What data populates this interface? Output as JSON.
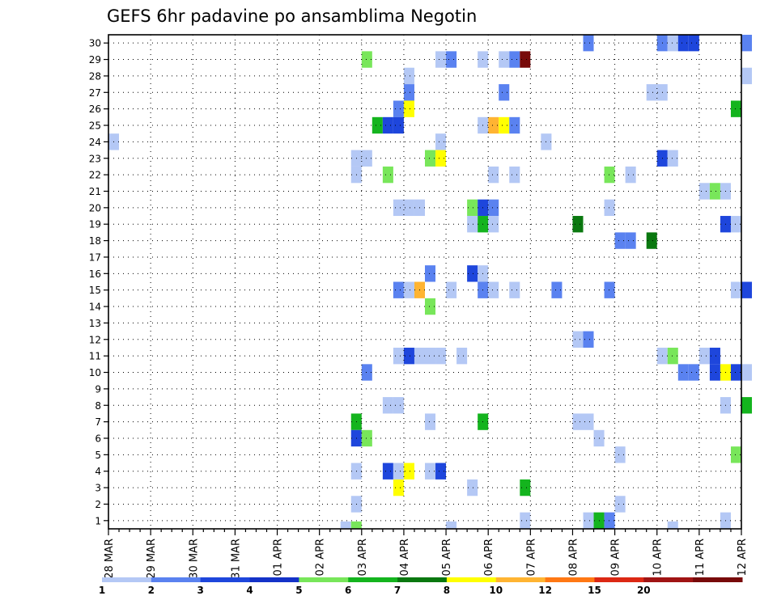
{
  "chart_data": {
    "type": "heatmap",
    "title": "GEFS 6hr padavine po ansamblima Negotin",
    "xlabel": "",
    "ylabel": "",
    "x_tick_labels": [
      "28 MAR",
      "29 MAR",
      "30 MAR",
      "31 MAR",
      "01 APR",
      "02 APR",
      "03 APR",
      "04 APR",
      "05 APR",
      "06 APR",
      "07 APR",
      "08 APR",
      "09 APR",
      "10 APR",
      "11 APR",
      "12 APR"
    ],
    "x_range_steps": [
      0,
      60
    ],
    "y_range": [
      0.5,
      30.5
    ],
    "y_tick_labels": [
      "1",
      "2",
      "3",
      "4",
      "5",
      "6",
      "7",
      "8",
      "9",
      "10",
      "11",
      "12",
      "13",
      "14",
      "15",
      "16",
      "17",
      "18",
      "19",
      "20",
      "21",
      "22",
      "23",
      "24",
      "25",
      "26",
      "27",
      "28",
      "29",
      "30"
    ],
    "time_step": "6hr",
    "grid": "dotted",
    "colorbar": {
      "labels": [
        "1",
        "2",
        "3",
        "4",
        "5",
        "6",
        "7",
        "8",
        "10",
        "12",
        "15",
        "20"
      ],
      "colors": [
        "#b4c8f5",
        "#5a82f0",
        "#1e46dc",
        "#1432c8",
        "#78e65a",
        "#14b41e",
        "#0a780f",
        "#ffff00",
        "#ffb432",
        "#ff7814",
        "#dc2814",
        "#a01414",
        "#780a0a"
      ]
    },
    "cells_note": "each cell: [member, step (6-hour steps from 28 MAR 00Z), color index into colorbar.colors]",
    "cells": [
      [
        30,
        45,
        1
      ],
      [
        30,
        52,
        1
      ],
      [
        30,
        53,
        0
      ],
      [
        30,
        54,
        2
      ],
      [
        30,
        55,
        2
      ],
      [
        30,
        60,
        1
      ],
      [
        29,
        24,
        4
      ],
      [
        29,
        31,
        0
      ],
      [
        29,
        32,
        1
      ],
      [
        29,
        35,
        0
      ],
      [
        29,
        37,
        0
      ],
      [
        29,
        38,
        1
      ],
      [
        29,
        39,
        12
      ],
      [
        28,
        28,
        0
      ],
      [
        28,
        60,
        0
      ],
      [
        27,
        28,
        1
      ],
      [
        27,
        37,
        1
      ],
      [
        27,
        51,
        0
      ],
      [
        27,
        52,
        0
      ],
      [
        26,
        27,
        1
      ],
      [
        26,
        28,
        7
      ],
      [
        26,
        59,
        5
      ],
      [
        25,
        25,
        5
      ],
      [
        25,
        26,
        2
      ],
      [
        25,
        27,
        2
      ],
      [
        25,
        35,
        0
      ],
      [
        25,
        36,
        8
      ],
      [
        25,
        37,
        7
      ],
      [
        25,
        38,
        1
      ],
      [
        24,
        0,
        0
      ],
      [
        24,
        31,
        0
      ],
      [
        24,
        41,
        0
      ],
      [
        23,
        23,
        0
      ],
      [
        23,
        24,
        0
      ],
      [
        23,
        30,
        4
      ],
      [
        23,
        31,
        7
      ],
      [
        23,
        52,
        2
      ],
      [
        23,
        53,
        0
      ],
      [
        22,
        23,
        0
      ],
      [
        22,
        26,
        4
      ],
      [
        22,
        36,
        0
      ],
      [
        22,
        38,
        0
      ],
      [
        22,
        47,
        4
      ],
      [
        22,
        49,
        0
      ],
      [
        21,
        56,
        0
      ],
      [
        21,
        57,
        4
      ],
      [
        21,
        58,
        0
      ],
      [
        20,
        27,
        0
      ],
      [
        20,
        28,
        0
      ],
      [
        20,
        29,
        0
      ],
      [
        20,
        34,
        4
      ],
      [
        20,
        35,
        2
      ],
      [
        20,
        36,
        1
      ],
      [
        20,
        47,
        0
      ],
      [
        19,
        34,
        0
      ],
      [
        19,
        35,
        5
      ],
      [
        19,
        36,
        0
      ],
      [
        19,
        44,
        6
      ],
      [
        19,
        58,
        2
      ],
      [
        19,
        59,
        0
      ],
      [
        18,
        48,
        1
      ],
      [
        18,
        49,
        1
      ],
      [
        18,
        51,
        6
      ],
      [
        16,
        30,
        1
      ],
      [
        16,
        34,
        2
      ],
      [
        16,
        35,
        0
      ],
      [
        15,
        27,
        1
      ],
      [
        15,
        28,
        0
      ],
      [
        15,
        29,
        8
      ],
      [
        15,
        32,
        0
      ],
      [
        15,
        35,
        1
      ],
      [
        15,
        36,
        0
      ],
      [
        15,
        38,
        0
      ],
      [
        15,
        42,
        1
      ],
      [
        15,
        47,
        1
      ],
      [
        15,
        59,
        0
      ],
      [
        15,
        60,
        2
      ],
      [
        14,
        30,
        4
      ],
      [
        12,
        44,
        0
      ],
      [
        12,
        45,
        1
      ],
      [
        11,
        27,
        0
      ],
      [
        11,
        28,
        2
      ],
      [
        11,
        29,
        0
      ],
      [
        11,
        30,
        0
      ],
      [
        11,
        31,
        0
      ],
      [
        11,
        33,
        0
      ],
      [
        11,
        52,
        0
      ],
      [
        11,
        53,
        4
      ],
      [
        11,
        56,
        0
      ],
      [
        11,
        57,
        2
      ],
      [
        10,
        24,
        1
      ],
      [
        10,
        54,
        1
      ],
      [
        10,
        55,
        1
      ],
      [
        10,
        57,
        2
      ],
      [
        10,
        58,
        7
      ],
      [
        10,
        59,
        2
      ],
      [
        10,
        60,
        0
      ],
      [
        8,
        26,
        0
      ],
      [
        8,
        27,
        0
      ],
      [
        8,
        58,
        0
      ],
      [
        8,
        60,
        5
      ],
      [
        7,
        23,
        5
      ],
      [
        7,
        30,
        0
      ],
      [
        7,
        35,
        5
      ],
      [
        7,
        44,
        0
      ],
      [
        7,
        45,
        0
      ],
      [
        6,
        23,
        2
      ],
      [
        6,
        24,
        4
      ],
      [
        6,
        46,
        0
      ],
      [
        5,
        48,
        0
      ],
      [
        5,
        59,
        4
      ],
      [
        4,
        23,
        0
      ],
      [
        4,
        26,
        2
      ],
      [
        4,
        27,
        0
      ],
      [
        4,
        28,
        7
      ],
      [
        4,
        30,
        0
      ],
      [
        4,
        31,
        2
      ],
      [
        3,
        27,
        7
      ],
      [
        3,
        34,
        0
      ],
      [
        3,
        39,
        5
      ],
      [
        2,
        23,
        0
      ],
      [
        2,
        48,
        0
      ],
      [
        1,
        39,
        0
      ],
      [
        1,
        45,
        0
      ],
      [
        1,
        46,
        5
      ],
      [
        1,
        47,
        1
      ],
      [
        1,
        58,
        0
      ],
      [
        0.5,
        22,
        0
      ],
      [
        0.5,
        23,
        4
      ],
      [
        0.5,
        32,
        0
      ],
      [
        0.5,
        53,
        0
      ]
    ]
  }
}
